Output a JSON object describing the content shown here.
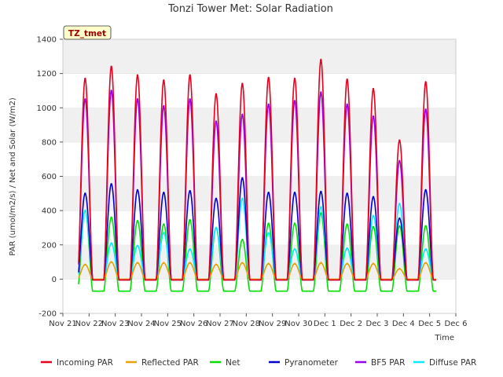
{
  "chart_data": {
    "type": "line",
    "title": "Tonzi Tower Met: Solar Radiation",
    "xlabel": "Time",
    "ylabel": "PAR (umol/m2/s) / Net and Solar (W/m2)",
    "ylim": [
      -200,
      1400
    ],
    "xlim": [
      0,
      15
    ],
    "yticks": [
      -200,
      0,
      200,
      400,
      600,
      800,
      1000,
      1200,
      1400
    ],
    "xtick_labels": [
      "Nov 21",
      "Nov 22",
      "Nov 23",
      "Nov 24",
      "Nov 25",
      "Nov 26",
      "Nov 27",
      "Nov 28",
      "Nov 29",
      "Nov 30",
      "Dec 1",
      "Dec 2",
      "Dec 3",
      "Dec 4",
      "Dec 5",
      "Dec 6"
    ],
    "grid": "horizontal bands",
    "legend_position": "bottom",
    "annotation": "TZ_tmet",
    "day_noon_offsets": [
      0.85,
      1.85,
      2.85,
      3.85,
      4.85,
      5.85,
      6.85,
      7.85,
      8.85,
      9.85,
      10.85,
      11.85,
      12.85,
      13.85
    ],
    "series": [
      {
        "name": "Incoming PAR",
        "color": "#e8001c",
        "baseline": -5,
        "values": [
          1170,
          1240,
          1190,
          1160,
          1190,
          1080,
          1140,
          1175,
          1170,
          1280,
          1165,
          1110,
          810,
          1150
        ]
      },
      {
        "name": "Reflected PAR",
        "color": "#e8a000",
        "baseline": 0,
        "values": [
          85,
          100,
          95,
          95,
          95,
          85,
          95,
          90,
          90,
          95,
          90,
          90,
          60,
          95
        ]
      },
      {
        "name": "Net",
        "color": "#00e000",
        "baseline": -70,
        "values": [
          400,
          360,
          340,
          320,
          345,
          300,
          230,
          325,
          325,
          385,
          320,
          305,
          310,
          310
        ]
      },
      {
        "name": "Pyranometer",
        "color": "#0000cc",
        "baseline": -3,
        "values": [
          500,
          555,
          520,
          505,
          515,
          470,
          590,
          505,
          505,
          510,
          500,
          480,
          355,
          520
        ]
      },
      {
        "name": "BF5 PAR",
        "color": "#9900ee",
        "baseline": -5,
        "values": [
          1050,
          1100,
          1050,
          1010,
          1050,
          920,
          960,
          1020,
          1040,
          1090,
          1020,
          950,
          690,
          990
        ]
      },
      {
        "name": "Diffuse PAR",
        "color": "#00eeff",
        "baseline": -5,
        "values": [
          400,
          210,
          195,
          270,
          175,
          300,
          470,
          270,
          175,
          420,
          180,
          370,
          440,
          175
        ]
      }
    ]
  }
}
